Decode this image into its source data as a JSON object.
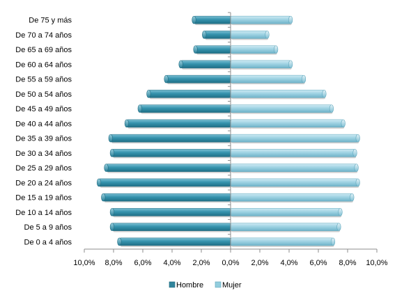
{
  "chart_data": {
    "type": "bar",
    "orientation": "horizontal",
    "layout": "population-pyramid",
    "categories": [
      "De 75 y más",
      "De 70 a 74 años",
      "De 65 a 69 años",
      "De 60 a 64 años",
      "De 55 a 59 años",
      "De 50 a 54 años",
      "De 45 a 49 años",
      "De 40 a 44 años",
      "De 35 a 39 años",
      "De 30 a 34 años",
      "De 25 a 29 años",
      "De 20 a 24 años",
      "De 15 a 19 años",
      "De 10 a 14 años",
      "De 5 a 9 años",
      "De 0 a 4 años"
    ],
    "series": [
      {
        "name": "Hombre",
        "values": [
          -2.5,
          -1.8,
          -2.4,
          -3.4,
          -4.4,
          -5.6,
          -6.2,
          -7.1,
          -8.2,
          -8.1,
          -8.5,
          -9.0,
          -8.7,
          -8.1,
          -8.1,
          -7.6
        ],
        "color": "#31859c"
      },
      {
        "name": "Mujer",
        "values": [
          4.1,
          2.5,
          3.1,
          4.1,
          5.0,
          6.4,
          6.9,
          7.7,
          8.7,
          8.5,
          8.6,
          8.7,
          8.3,
          7.5,
          7.4,
          7.0
        ],
        "color": "#93cddd"
      }
    ],
    "xlim": [
      -10,
      10
    ],
    "x_ticks": [
      "10,0%",
      "8,0%",
      "6,0%",
      "4,0%",
      "2,0%",
      "0,0%",
      "2,0%",
      "4,0%",
      "6,0%",
      "8,0%",
      "10,0%"
    ],
    "grid": false,
    "legend": "bottom"
  }
}
